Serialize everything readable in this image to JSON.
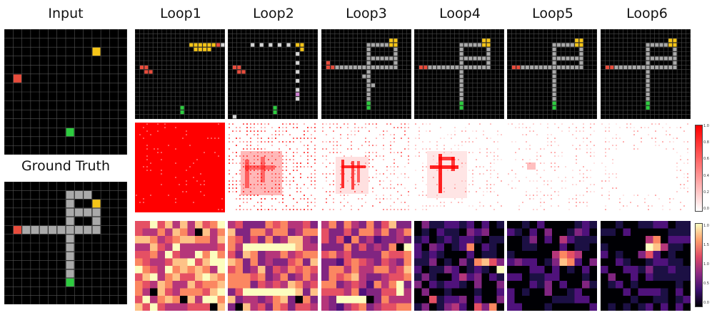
{
  "headers": {
    "input": "Input",
    "ground_truth": "Ground Truth",
    "loops": [
      "Loop1",
      "Loop2",
      "Loop3",
      "Loop4",
      "Loop5",
      "Loop6"
    ]
  },
  "colorbar_attention": {
    "ticks": [
      "1.0",
      "0.8",
      "0.6",
      "0.4",
      "0.2",
      "0.0"
    ],
    "colors": [
      "#ff0000",
      "#ffffff"
    ]
  },
  "colorbar_norm": {
    "ticks": [
      "1.0",
      "1.5",
      "1.0",
      "0.5",
      "0.0"
    ],
    "colors": [
      "#fcfdbf",
      "#fe9f6d",
      "#de4968",
      "#8c2981",
      "#3b0f70",
      "#000004"
    ]
  },
  "colors": {
    "grid_background": "#000000",
    "grid_line": "#555555",
    "start_cell": "#e74c3c",
    "goal_cell_yellow": "#f5c518",
    "goal_cell_green": "#2ecc40",
    "path_cell": "#a9a9a9"
  }
}
